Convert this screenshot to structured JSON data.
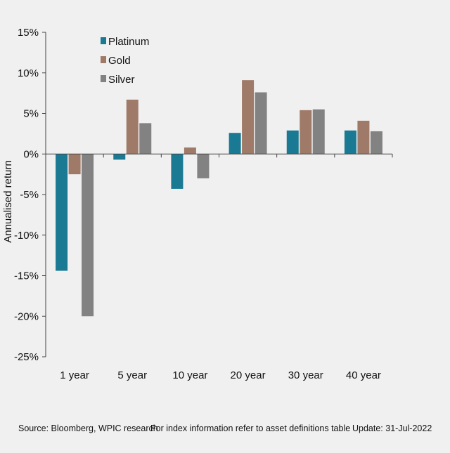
{
  "chart_data": {
    "type": "bar",
    "categories": [
      "1 year",
      "5 year",
      "10 year",
      "20 year",
      "30 year",
      "40 year"
    ],
    "series": [
      {
        "name": "Platinum",
        "color": "#1a7a93",
        "values": [
          -14.4,
          -0.7,
          -4.3,
          2.6,
          2.9,
          2.9
        ]
      },
      {
        "name": "Gold",
        "color": "#a07a68",
        "values": [
          -2.5,
          6.7,
          0.8,
          9.1,
          5.4,
          4.1
        ]
      },
      {
        "name": "Silver",
        "color": "#828282",
        "values": [
          -20.0,
          3.8,
          -3.0,
          7.6,
          5.5,
          2.8
        ]
      }
    ],
    "ylabel": "Annualised  return",
    "ylim": [
      -25,
      15
    ],
    "yticks": [
      15,
      10,
      5,
      0,
      -5,
      -10,
      -15,
      -20,
      -25
    ],
    "ytick_labels": [
      "15%",
      "10%",
      "5%",
      "0%",
      "-5%",
      "-10%",
      "-15%",
      "-20%",
      "-25%"
    ],
    "legend_position": "top-left",
    "grid": false
  },
  "footer": {
    "source": "Source: Bloomberg, WPIC research",
    "note": "For index information refer to asset definitions table",
    "update": "Update: 31-Jul-2022"
  }
}
